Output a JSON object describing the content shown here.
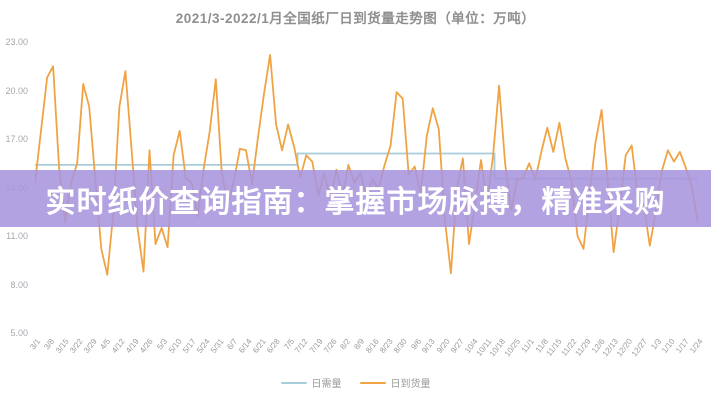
{
  "overlay": {
    "text": "实时纸价查询指南：掌握市场脉搏，精准采购",
    "bg_color": "#a794dd",
    "bg_opacity": 0.87,
    "text_color": "#ffffff"
  },
  "legend": [
    {
      "label": "日需量",
      "color": "#a8cddb"
    },
    {
      "label": "日到货量",
      "color": "#f0a344"
    }
  ],
  "chart_data": {
    "type": "line",
    "title": "2021/3-2022/1月全国纸厂日到货量走势图（单位：万吨）",
    "unit": "万吨",
    "grid": false,
    "legend_position": "bottom",
    "ylim": [
      5,
      23
    ],
    "y_ticks": [
      "23.00",
      "20.00",
      "17.00",
      "14.00",
      "11.00",
      "8.00",
      "5.00"
    ],
    "x_tick_labels": [
      "3/1",
      "3/8",
      "3/15",
      "3/22",
      "3/29",
      "4/5",
      "4/12",
      "4/19",
      "4/26",
      "5/3",
      "5/10",
      "5/17",
      "5/24",
      "5/31",
      "6/7",
      "6/14",
      "6/21",
      "6/28",
      "7/5",
      "7/12",
      "7/19",
      "7/26",
      "8/2",
      "8/9",
      "8/16",
      "8/23",
      "8/30",
      "9/6",
      "9/13",
      "9/20",
      "9/27",
      "10/4",
      "10/11",
      "10/18",
      "10/25",
      "11/1",
      "11/8",
      "11/15",
      "11/22",
      "11/29",
      "12/6",
      "12/13",
      "12/20",
      "12/27",
      "1/3",
      "1/10",
      "1/17",
      "1/24"
    ],
    "series": [
      {
        "name": "日需量",
        "type": "step",
        "color": "#a8cddb",
        "segments": [
          {
            "from": 0.0,
            "to": 0.396,
            "value": 15.4
          },
          {
            "from": 0.396,
            "to": 0.693,
            "value": 16.1
          },
          {
            "from": 0.693,
            "to": 1.0,
            "value": 14.55
          }
        ]
      },
      {
        "name": "日到货量",
        "type": "line",
        "color": "#f0a344",
        "sample_interval_days": 3,
        "values": [
          14.3,
          17.5,
          20.8,
          21.5,
          15.2,
          11.9,
          14.3,
          15.5,
          20.4,
          19.0,
          14.5,
          10.2,
          8.6,
          12.5,
          19.0,
          21.2,
          16.5,
          11.5,
          8.8,
          16.3,
          10.5,
          11.5,
          10.3,
          16.0,
          17.5,
          14.6,
          14.3,
          12.2,
          15.2,
          17.5,
          20.7,
          14.9,
          13.0,
          14.4,
          16.4,
          16.3,
          14.2,
          17.1,
          19.8,
          22.2,
          17.9,
          16.3,
          17.9,
          16.5,
          14.6,
          16.0,
          15.6,
          13.5,
          14.9,
          13.3,
          15.1,
          13.4,
          15.4,
          14.3,
          14.9,
          13.4,
          14.5,
          13.9,
          15.4,
          16.6,
          19.9,
          19.5,
          14.8,
          15.3,
          13.6,
          17.2,
          18.9,
          17.6,
          12.0,
          8.7,
          14.0,
          15.8,
          10.5,
          13.0,
          15.7,
          13.0,
          16.0,
          20.3,
          15.5,
          12.6,
          14.5,
          14.6,
          15.5,
          14.5,
          16.2,
          17.7,
          16.2,
          18.0,
          15.8,
          14.4,
          11.0,
          10.2,
          13.5,
          16.8,
          18.8,
          14.5,
          10.0,
          12.8,
          16.0,
          16.6,
          13.5,
          12.9,
          10.4,
          12.5,
          15.0,
          16.3,
          15.6,
          16.2,
          15.2,
          14.0,
          11.8
        ]
      }
    ]
  }
}
